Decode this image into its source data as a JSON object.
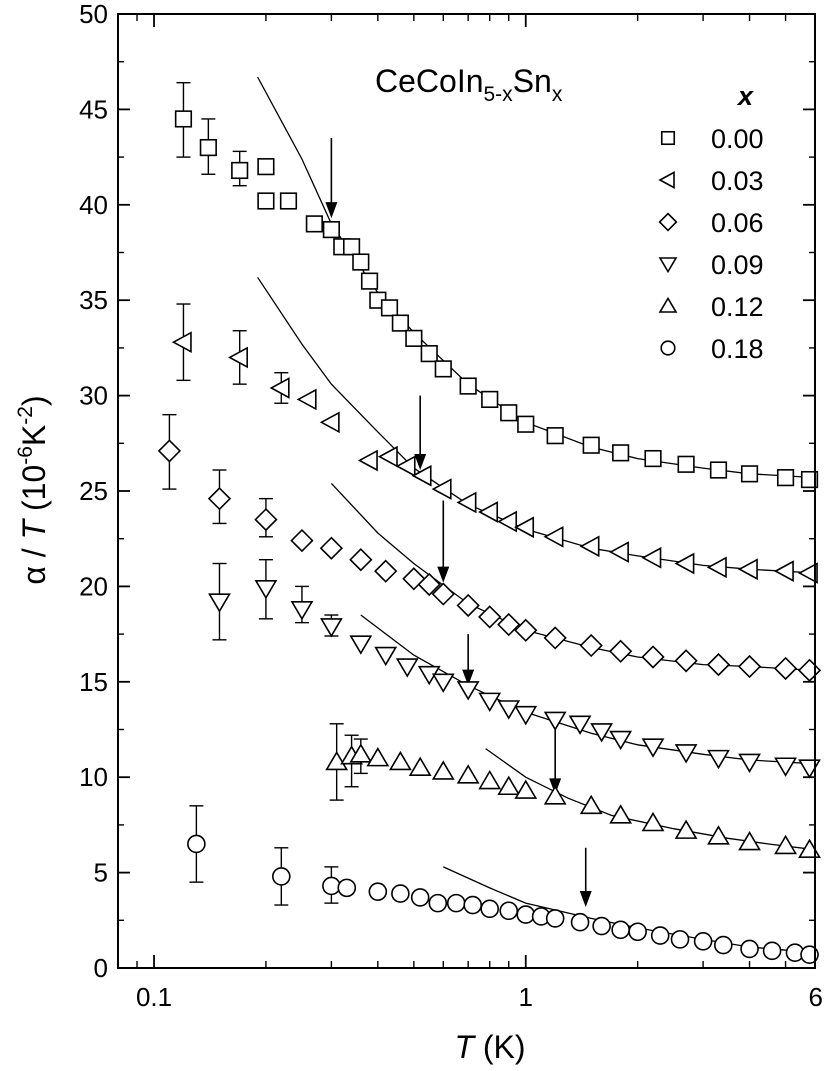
{
  "chart_data": {
    "type": "scatter",
    "x_scale": "log",
    "xlim": [
      0.08,
      6
    ],
    "ylim": [
      0,
      50
    ],
    "x_ticks": [
      {
        "value": 0.1,
        "label": "0.1"
      },
      {
        "value": 1,
        "label": "1"
      },
      {
        "value": 6,
        "label": "6"
      }
    ],
    "y_ticks": [
      {
        "value": 0,
        "label": "0"
      },
      {
        "value": 5,
        "label": "5"
      },
      {
        "value": 10,
        "label": "10"
      },
      {
        "value": 15,
        "label": "15"
      },
      {
        "value": 20,
        "label": "20"
      },
      {
        "value": 25,
        "label": "25"
      },
      {
        "value": 30,
        "label": "30"
      },
      {
        "value": 35,
        "label": "35"
      },
      {
        "value": 40,
        "label": "40"
      },
      {
        "value": 45,
        "label": "45"
      },
      {
        "value": 50,
        "label": "50"
      }
    ],
    "xlabel": {
      "var": "T",
      "unit": " (K)"
    },
    "ylabel": {
      "alpha": "α",
      "slash": " / ",
      "var": "T",
      "open": " (10",
      "exp1": "-6",
      "mid": "K",
      "exp2": "-2",
      "close": ")"
    },
    "annotation": {
      "base": "CeCoIn",
      "sub1": "5-x",
      "mid": "Sn",
      "sub2": "x"
    },
    "legend_title": "x",
    "series": [
      {
        "name": "0.00",
        "marker": "square",
        "points": [
          [
            0.12,
            44.5
          ],
          [
            0.14,
            43.0
          ],
          [
            0.17,
            41.8
          ],
          [
            0.2,
            42.0
          ],
          [
            0.2,
            40.2
          ],
          [
            0.23,
            40.2
          ],
          [
            0.27,
            39.0
          ],
          [
            0.3,
            38.7
          ],
          [
            0.32,
            37.8
          ],
          [
            0.34,
            37.8
          ],
          [
            0.36,
            37.0
          ],
          [
            0.38,
            36.0
          ],
          [
            0.4,
            35.0
          ],
          [
            0.43,
            34.6
          ],
          [
            0.46,
            33.8
          ],
          [
            0.5,
            33.0
          ],
          [
            0.55,
            32.2
          ],
          [
            0.6,
            31.4
          ],
          [
            0.7,
            30.5
          ],
          [
            0.8,
            29.8
          ],
          [
            0.9,
            29.1
          ],
          [
            1.0,
            28.5
          ],
          [
            1.2,
            27.9
          ],
          [
            1.5,
            27.4
          ],
          [
            1.8,
            27.0
          ],
          [
            2.2,
            26.7
          ],
          [
            2.7,
            26.4
          ],
          [
            3.3,
            26.1
          ],
          [
            4.0,
            25.9
          ],
          [
            5.0,
            25.7
          ],
          [
            5.8,
            25.6
          ]
        ],
        "error_bars": [
          {
            "x": 0.12,
            "low": 42.5,
            "high": 46.4
          },
          {
            "x": 0.14,
            "low": 41.6,
            "high": 44.5
          },
          {
            "x": 0.17,
            "low": 41.0,
            "high": 42.8
          }
        ],
        "fit": [
          [
            0.19,
            46.7
          ],
          [
            0.25,
            42.4
          ],
          [
            0.3,
            39.0
          ],
          [
            0.4,
            35.4
          ],
          [
            0.5,
            33.3
          ],
          [
            0.7,
            30.6
          ],
          [
            1.0,
            28.6
          ],
          [
            1.5,
            27.3
          ],
          [
            2.0,
            26.7
          ],
          [
            3.0,
            26.2
          ],
          [
            4.0,
            25.9
          ],
          [
            6.0,
            25.7
          ]
        ],
        "arrow": {
          "x": 0.3,
          "y_top": 43.5,
          "y_tip": 39.3
        }
      },
      {
        "name": "0.03",
        "marker": "triangle-left",
        "points": [
          [
            0.12,
            32.8
          ],
          [
            0.17,
            32.0
          ],
          [
            0.22,
            30.4
          ],
          [
            0.26,
            29.8
          ],
          [
            0.3,
            28.6
          ],
          [
            0.38,
            26.6
          ],
          [
            0.43,
            26.8
          ],
          [
            0.48,
            26.3
          ],
          [
            0.53,
            25.8
          ],
          [
            0.6,
            25.1
          ],
          [
            0.7,
            24.4
          ],
          [
            0.8,
            23.9
          ],
          [
            0.9,
            23.4
          ],
          [
            1.0,
            23.1
          ],
          [
            1.2,
            22.6
          ],
          [
            1.5,
            22.1
          ],
          [
            1.8,
            21.8
          ],
          [
            2.2,
            21.5
          ],
          [
            2.7,
            21.2
          ],
          [
            3.3,
            21.0
          ],
          [
            4.0,
            20.9
          ],
          [
            5.0,
            20.8
          ],
          [
            5.8,
            20.7
          ]
        ],
        "error_bars": [
          {
            "x": 0.12,
            "low": 30.8,
            "high": 34.8
          },
          {
            "x": 0.17,
            "low": 30.6,
            "high": 33.4
          },
          {
            "x": 0.22,
            "low": 29.6,
            "high": 31.2
          }
        ],
        "fit": [
          [
            0.19,
            36.2
          ],
          [
            0.25,
            32.7
          ],
          [
            0.3,
            30.6
          ],
          [
            0.4,
            28.1
          ],
          [
            0.5,
            26.2
          ],
          [
            0.7,
            24.3
          ],
          [
            1.0,
            23.0
          ],
          [
            1.5,
            22.0
          ],
          [
            2.0,
            21.6
          ],
          [
            3.0,
            21.1
          ],
          [
            4.0,
            20.9
          ],
          [
            6.0,
            20.7
          ]
        ],
        "arrow": {
          "x": 0.52,
          "y_top": 30.0,
          "y_tip": 26.1
        }
      },
      {
        "name": "0.06",
        "marker": "diamond",
        "points": [
          [
            0.11,
            27.1
          ],
          [
            0.15,
            24.6
          ],
          [
            0.2,
            23.5
          ],
          [
            0.25,
            22.4
          ],
          [
            0.3,
            22.0
          ],
          [
            0.36,
            21.4
          ],
          [
            0.42,
            20.8
          ],
          [
            0.5,
            20.4
          ],
          [
            0.55,
            20.1
          ],
          [
            0.6,
            19.6
          ],
          [
            0.7,
            19.0
          ],
          [
            0.8,
            18.4
          ],
          [
            0.9,
            18.0
          ],
          [
            1.0,
            17.7
          ],
          [
            1.2,
            17.3
          ],
          [
            1.5,
            16.9
          ],
          [
            1.8,
            16.6
          ],
          [
            2.2,
            16.3
          ],
          [
            2.7,
            16.1
          ],
          [
            3.3,
            15.9
          ],
          [
            4.0,
            15.8
          ],
          [
            5.0,
            15.7
          ],
          [
            5.8,
            15.6
          ]
        ],
        "error_bars": [
          {
            "x": 0.11,
            "low": 25.1,
            "high": 29.0
          },
          {
            "x": 0.15,
            "low": 23.3,
            "high": 26.1
          },
          {
            "x": 0.2,
            "low": 22.6,
            "high": 24.6
          }
        ],
        "fit": [
          [
            0.3,
            25.4
          ],
          [
            0.4,
            22.8
          ],
          [
            0.5,
            21.2
          ],
          [
            0.7,
            19.1
          ],
          [
            1.0,
            17.7
          ],
          [
            1.5,
            16.8
          ],
          [
            2.0,
            16.3
          ],
          [
            3.0,
            15.9
          ],
          [
            4.0,
            15.8
          ],
          [
            6.0,
            15.6
          ]
        ],
        "arrow": {
          "x": 0.6,
          "y_top": 24.5,
          "y_tip": 20.2
        }
      },
      {
        "name": "0.09",
        "marker": "triangle-down",
        "points": [
          [
            0.15,
            19.2
          ],
          [
            0.2,
            19.9
          ],
          [
            0.25,
            18.8
          ],
          [
            0.3,
            17.9
          ],
          [
            0.36,
            17.0
          ],
          [
            0.42,
            16.4
          ],
          [
            0.48,
            15.8
          ],
          [
            0.55,
            15.4
          ],
          [
            0.6,
            15.0
          ],
          [
            0.7,
            14.6
          ],
          [
            0.8,
            14.0
          ],
          [
            0.9,
            13.6
          ],
          [
            1.0,
            13.3
          ],
          [
            1.2,
            13.0
          ],
          [
            1.4,
            12.8
          ],
          [
            1.6,
            12.4
          ],
          [
            1.8,
            12.0
          ],
          [
            2.2,
            11.6
          ],
          [
            2.7,
            11.3
          ],
          [
            3.3,
            11.0
          ],
          [
            4.0,
            10.8
          ],
          [
            5.0,
            10.6
          ],
          [
            5.8,
            10.5
          ]
        ],
        "error_bars": [
          {
            "x": 0.15,
            "low": 17.2,
            "high": 21.2
          },
          {
            "x": 0.2,
            "low": 18.3,
            "high": 21.4
          },
          {
            "x": 0.25,
            "low": 18.1,
            "high": 20.0
          },
          {
            "x": 0.3,
            "low": 17.4,
            "high": 18.5
          }
        ],
        "fit": [
          [
            0.36,
            18.5
          ],
          [
            0.5,
            16.4
          ],
          [
            0.7,
            14.8
          ],
          [
            1.0,
            13.4
          ],
          [
            1.5,
            12.3
          ],
          [
            2.0,
            11.7
          ],
          [
            3.0,
            11.2
          ],
          [
            4.0,
            10.9
          ],
          [
            6.0,
            10.7
          ]
        ],
        "arrow": {
          "x": 0.7,
          "y_top": 17.5,
          "y_tip": 14.8
        }
      },
      {
        "name": "0.12",
        "marker": "triangle-up",
        "points": [
          [
            0.31,
            10.8
          ],
          [
            0.34,
            11.1
          ],
          [
            0.36,
            11.2
          ],
          [
            0.4,
            11.0
          ],
          [
            0.46,
            10.8
          ],
          [
            0.52,
            10.5
          ],
          [
            0.6,
            10.3
          ],
          [
            0.7,
            10.1
          ],
          [
            0.8,
            9.8
          ],
          [
            0.9,
            9.5
          ],
          [
            1.0,
            9.3
          ],
          [
            1.2,
            9.0
          ],
          [
            1.5,
            8.5
          ],
          [
            1.8,
            8.0
          ],
          [
            2.2,
            7.6
          ],
          [
            2.7,
            7.2
          ],
          [
            3.3,
            6.9
          ],
          [
            4.0,
            6.6
          ],
          [
            5.0,
            6.4
          ],
          [
            5.8,
            6.2
          ]
        ],
        "error_bars": [
          {
            "x": 0.31,
            "low": 8.8,
            "high": 12.8
          },
          {
            "x": 0.34,
            "low": 9.5,
            "high": 12.2
          },
          {
            "x": 0.36,
            "low": 10.2,
            "high": 12.0
          }
        ],
        "fit": [
          [
            0.78,
            11.5
          ],
          [
            1.0,
            10.0
          ],
          [
            1.3,
            8.9
          ],
          [
            1.7,
            8.0
          ],
          [
            2.5,
            7.3
          ],
          [
            3.5,
            6.8
          ],
          [
            4.5,
            6.5
          ],
          [
            6.0,
            6.2
          ]
        ],
        "arrow": {
          "x": 1.2,
          "y_top": 12.5,
          "y_tip": 9.1
        }
      },
      {
        "name": "0.18",
        "marker": "circle",
        "points": [
          [
            0.13,
            6.5
          ],
          [
            0.22,
            4.8
          ],
          [
            0.3,
            4.3
          ],
          [
            0.33,
            4.2
          ],
          [
            0.4,
            4.0
          ],
          [
            0.46,
            3.9
          ],
          [
            0.52,
            3.7
          ],
          [
            0.58,
            3.4
          ],
          [
            0.65,
            3.4
          ],
          [
            0.72,
            3.3
          ],
          [
            0.8,
            3.1
          ],
          [
            0.9,
            3.0
          ],
          [
            1.0,
            2.8
          ],
          [
            1.1,
            2.7
          ],
          [
            1.2,
            2.6
          ],
          [
            1.4,
            2.4
          ],
          [
            1.6,
            2.2
          ],
          [
            1.8,
            2.0
          ],
          [
            2.0,
            1.9
          ],
          [
            2.3,
            1.7
          ],
          [
            2.6,
            1.5
          ],
          [
            3.0,
            1.4
          ],
          [
            3.4,
            1.2
          ],
          [
            4.0,
            1.0
          ],
          [
            4.6,
            0.9
          ],
          [
            5.3,
            0.8
          ],
          [
            5.8,
            0.7
          ]
        ],
        "error_bars": [
          {
            "x": 0.13,
            "low": 4.5,
            "high": 8.5
          },
          {
            "x": 0.22,
            "low": 3.3,
            "high": 6.3
          },
          {
            "x": 0.3,
            "low": 3.4,
            "high": 5.3
          }
        ],
        "fit": [
          [
            0.6,
            5.3
          ],
          [
            0.8,
            4.2
          ],
          [
            1.0,
            3.4
          ],
          [
            1.5,
            2.6
          ],
          [
            2.0,
            2.1
          ],
          [
            3.0,
            1.5
          ],
          [
            4.0,
            1.1
          ],
          [
            6.0,
            0.8
          ]
        ],
        "arrow": {
          "x": 1.45,
          "y_top": 6.3,
          "y_tip": 3.2
        }
      }
    ]
  }
}
